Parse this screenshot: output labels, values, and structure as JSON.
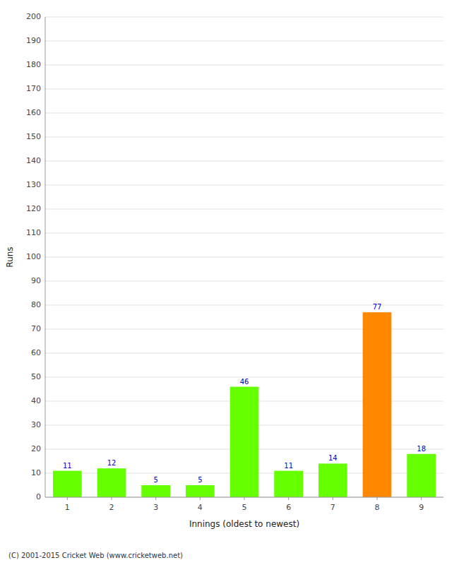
{
  "chart_data": {
    "type": "bar",
    "xlabel": "Innings (oldest to newest)",
    "ylabel": "Runs",
    "categories": [
      "1",
      "2",
      "3",
      "4",
      "5",
      "6",
      "7",
      "8",
      "9"
    ],
    "values": [
      11,
      12,
      5,
      5,
      46,
      11,
      14,
      77,
      18
    ],
    "colors": [
      "#66ff00",
      "#66ff00",
      "#66ff00",
      "#66ff00",
      "#66ff00",
      "#66ff00",
      "#66ff00",
      "#ff8800",
      "#66ff00"
    ],
    "ylim": [
      0,
      200
    ],
    "yticks": [
      0,
      10,
      20,
      30,
      40,
      50,
      60,
      70,
      80,
      90,
      100,
      110,
      120,
      130,
      140,
      150,
      160,
      170,
      180,
      190,
      200
    ],
    "grid": true,
    "data_labels": true,
    "annotations": [
      "(C) 2001-2015 Cricket Web (www.cricketweb.net)"
    ]
  }
}
